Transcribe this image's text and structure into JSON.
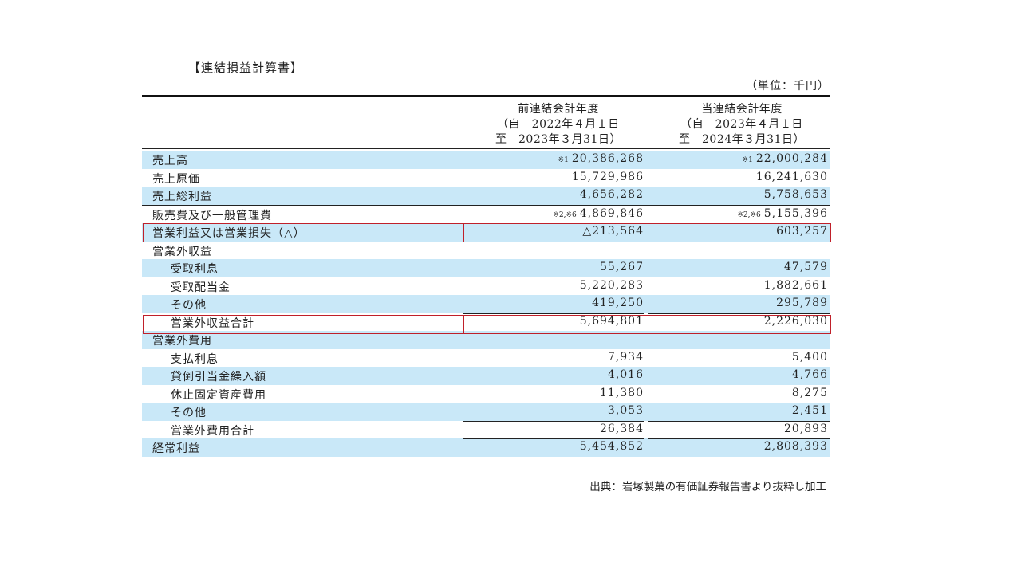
{
  "title": "【連結損益計算書】",
  "unit": "（単位：千円）",
  "columns": {
    "prev": {
      "line1": "前連結会計年度",
      "line2": "（自　2022年４月１日",
      "line3": "至　2023年３月31日）"
    },
    "cur": {
      "line1": "当連結会計年度",
      "line2": "（自　2023年４月１日",
      "line3": "至　2024年３月31日）"
    }
  },
  "rows": [
    {
      "label": "売上高",
      "note1": "※1",
      "v1": "20,386,268",
      "note2": "※1",
      "v2": "22,000,284"
    },
    {
      "label": "売上原価",
      "v1": "15,729,986",
      "v2": "16,241,630"
    },
    {
      "label": "売上総利益",
      "v1": "4,656,282",
      "v2": "5,758,653"
    },
    {
      "label": "販売費及び一般管理費",
      "note1": "※2,※6",
      "v1": "4,869,846",
      "note2": "※2,※6",
      "v2": "5,155,396"
    },
    {
      "label": "営業利益又は営業損失（△）",
      "v1": "△213,564",
      "v2": "603,257"
    },
    {
      "label": "営業外収益",
      "v1": "",
      "v2": ""
    },
    {
      "label": "受取利息",
      "v1": "55,267",
      "v2": "47,579"
    },
    {
      "label": "受取配当金",
      "v1": "5,220,283",
      "v2": "1,882,661"
    },
    {
      "label": "その他",
      "v1": "419,250",
      "v2": "295,789"
    },
    {
      "label": "営業外収益合計",
      "v1": "5,694,801",
      "v2": "2,226,030"
    },
    {
      "label": "営業外費用",
      "v1": "",
      "v2": ""
    },
    {
      "label": "支払利息",
      "v1": "7,934",
      "v2": "5,400"
    },
    {
      "label": "貸倒引当金繰入額",
      "v1": "4,016",
      "v2": "4,766"
    },
    {
      "label": "休止固定資産費用",
      "v1": "11,380",
      "v2": "8,275"
    },
    {
      "label": "その他",
      "v1": "3,053",
      "v2": "2,451"
    },
    {
      "label": "営業外費用合計",
      "v1": "26,384",
      "v2": "20,893"
    },
    {
      "label": "経常利益",
      "v1": "5,454,852",
      "v2": "2,808,393"
    }
  ],
  "source": "出典：岩塚製菓の有価証券報告書より抜粋し加工",
  "highlight_color": "#c0202a",
  "shade_color": "#c9e8f8"
}
